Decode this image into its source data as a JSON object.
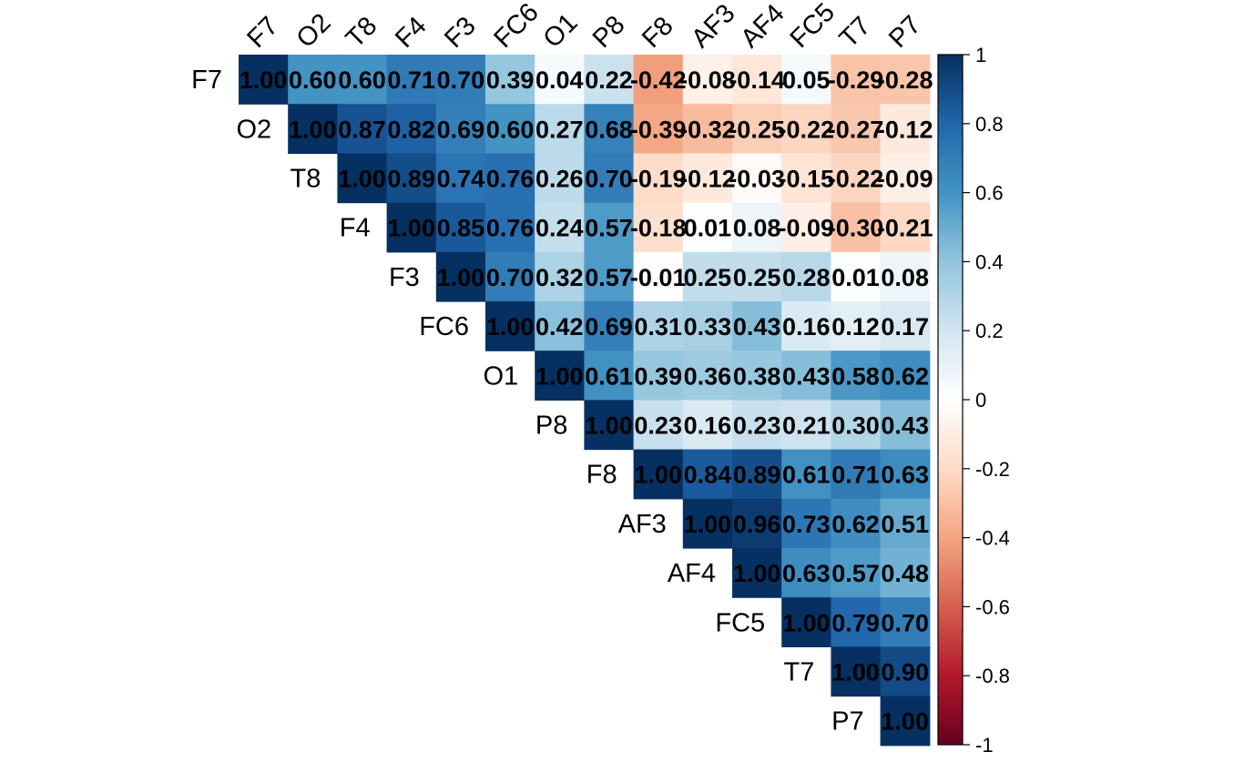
{
  "chart_data": {
    "type": "heatmap",
    "variables": [
      "F7",
      "O2",
      "T8",
      "F4",
      "F3",
      "FC6",
      "O1",
      "P8",
      "F8",
      "AF3",
      "AF4",
      "FC5",
      "T7",
      "P7"
    ],
    "layout": "upper-triangular",
    "matrix": [
      [
        1.0,
        0.6,
        0.6,
        0.71,
        0.7,
        0.39,
        0.04,
        0.22,
        -0.42,
        -0.08,
        -0.14,
        0.05,
        -0.29,
        -0.28
      ],
      [
        null,
        1.0,
        0.87,
        0.82,
        0.69,
        0.6,
        0.27,
        0.68,
        -0.39,
        -0.32,
        -0.25,
        -0.22,
        -0.27,
        -0.12
      ],
      [
        null,
        null,
        1.0,
        0.89,
        0.74,
        0.76,
        0.26,
        0.7,
        -0.19,
        -0.12,
        -0.03,
        -0.15,
        -0.22,
        -0.09
      ],
      [
        null,
        null,
        null,
        1.0,
        0.85,
        0.76,
        0.24,
        0.57,
        -0.18,
        0.01,
        0.08,
        -0.09,
        -0.3,
        -0.21
      ],
      [
        null,
        null,
        null,
        null,
        1.0,
        0.7,
        0.32,
        0.57,
        -0.01,
        0.25,
        0.25,
        0.28,
        0.01,
        0.08
      ],
      [
        null,
        null,
        null,
        null,
        null,
        1.0,
        0.42,
        0.69,
        0.31,
        0.33,
        0.43,
        0.16,
        0.12,
        0.17
      ],
      [
        null,
        null,
        null,
        null,
        null,
        null,
        1.0,
        0.61,
        0.39,
        0.36,
        0.38,
        0.43,
        0.58,
        0.62
      ],
      [
        null,
        null,
        null,
        null,
        null,
        null,
        null,
        1.0,
        0.23,
        0.16,
        0.23,
        0.21,
        0.3,
        0.43
      ],
      [
        null,
        null,
        null,
        null,
        null,
        null,
        null,
        null,
        1.0,
        0.84,
        0.89,
        0.61,
        0.71,
        0.63
      ],
      [
        null,
        null,
        null,
        null,
        null,
        null,
        null,
        null,
        null,
        1.0,
        0.96,
        0.73,
        0.62,
        0.51
      ],
      [
        null,
        null,
        null,
        null,
        null,
        null,
        null,
        null,
        null,
        null,
        1.0,
        0.63,
        0.57,
        0.48
      ],
      [
        null,
        null,
        null,
        null,
        null,
        null,
        null,
        null,
        null,
        null,
        null,
        1.0,
        0.79,
        0.7
      ],
      [
        null,
        null,
        null,
        null,
        null,
        null,
        null,
        null,
        null,
        null,
        null,
        null,
        1.0,
        0.9
      ],
      [
        null,
        null,
        null,
        null,
        null,
        null,
        null,
        null,
        null,
        null,
        null,
        null,
        null,
        1.0
      ]
    ],
    "value_range": [
      -1,
      1
    ],
    "colorbar": {
      "ticks": [
        "1",
        "0.8",
        "0.6",
        "0.4",
        "0.2",
        "0",
        "-0.2",
        "-0.4",
        "-0.6",
        "-0.8",
        "-1"
      ],
      "tick_values": [
        1,
        0.8,
        0.6,
        0.4,
        0.2,
        0,
        -0.2,
        -0.4,
        -0.6,
        -0.8,
        -1
      ],
      "colormap": [
        "#67001F",
        "#B2182B",
        "#D6604D",
        "#F4A582",
        "#FDDBC7",
        "#FFFFFF",
        "#D1E5F0",
        "#92C5DE",
        "#4393C3",
        "#2166AC",
        "#053061"
      ],
      "placement": "right"
    },
    "title": "",
    "xlabel": "",
    "ylabel": ""
  }
}
